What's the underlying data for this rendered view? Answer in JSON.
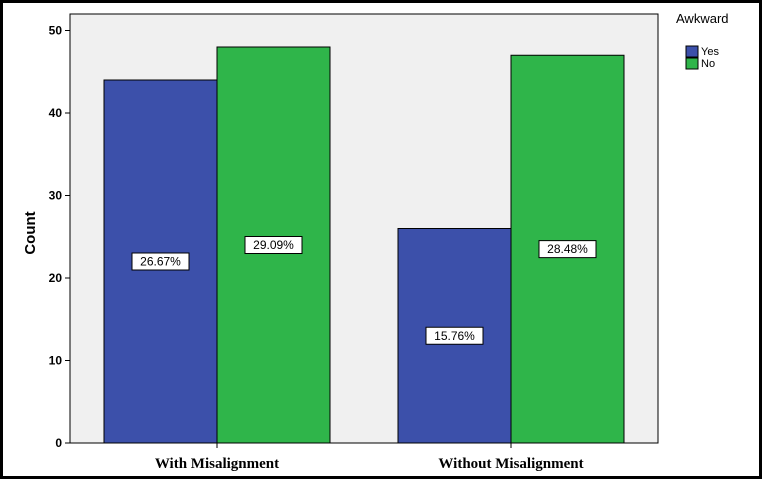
{
  "chart_data": {
    "type": "bar",
    "categories": [
      "With Misalignment",
      "Without Misalignment"
    ],
    "series": [
      {
        "name": "Yes",
        "values": [
          44,
          26
        ],
        "labels": [
          "26.67%",
          "15.76%"
        ],
        "color": "#3c50aa"
      },
      {
        "name": "No",
        "values": [
          48,
          47
        ],
        "labels": [
          "29.09%",
          "28.48%"
        ],
        "color": "#2fb54a"
      }
    ],
    "legend_title": "Awkward",
    "legend_position": "top-right",
    "ylabel": "Count",
    "xlabel": "",
    "ylim": [
      0,
      52
    ],
    "yticks": [
      0,
      10,
      20,
      30,
      40,
      50
    ],
    "grid": false,
    "plot_background": "#f0f0f0"
  }
}
